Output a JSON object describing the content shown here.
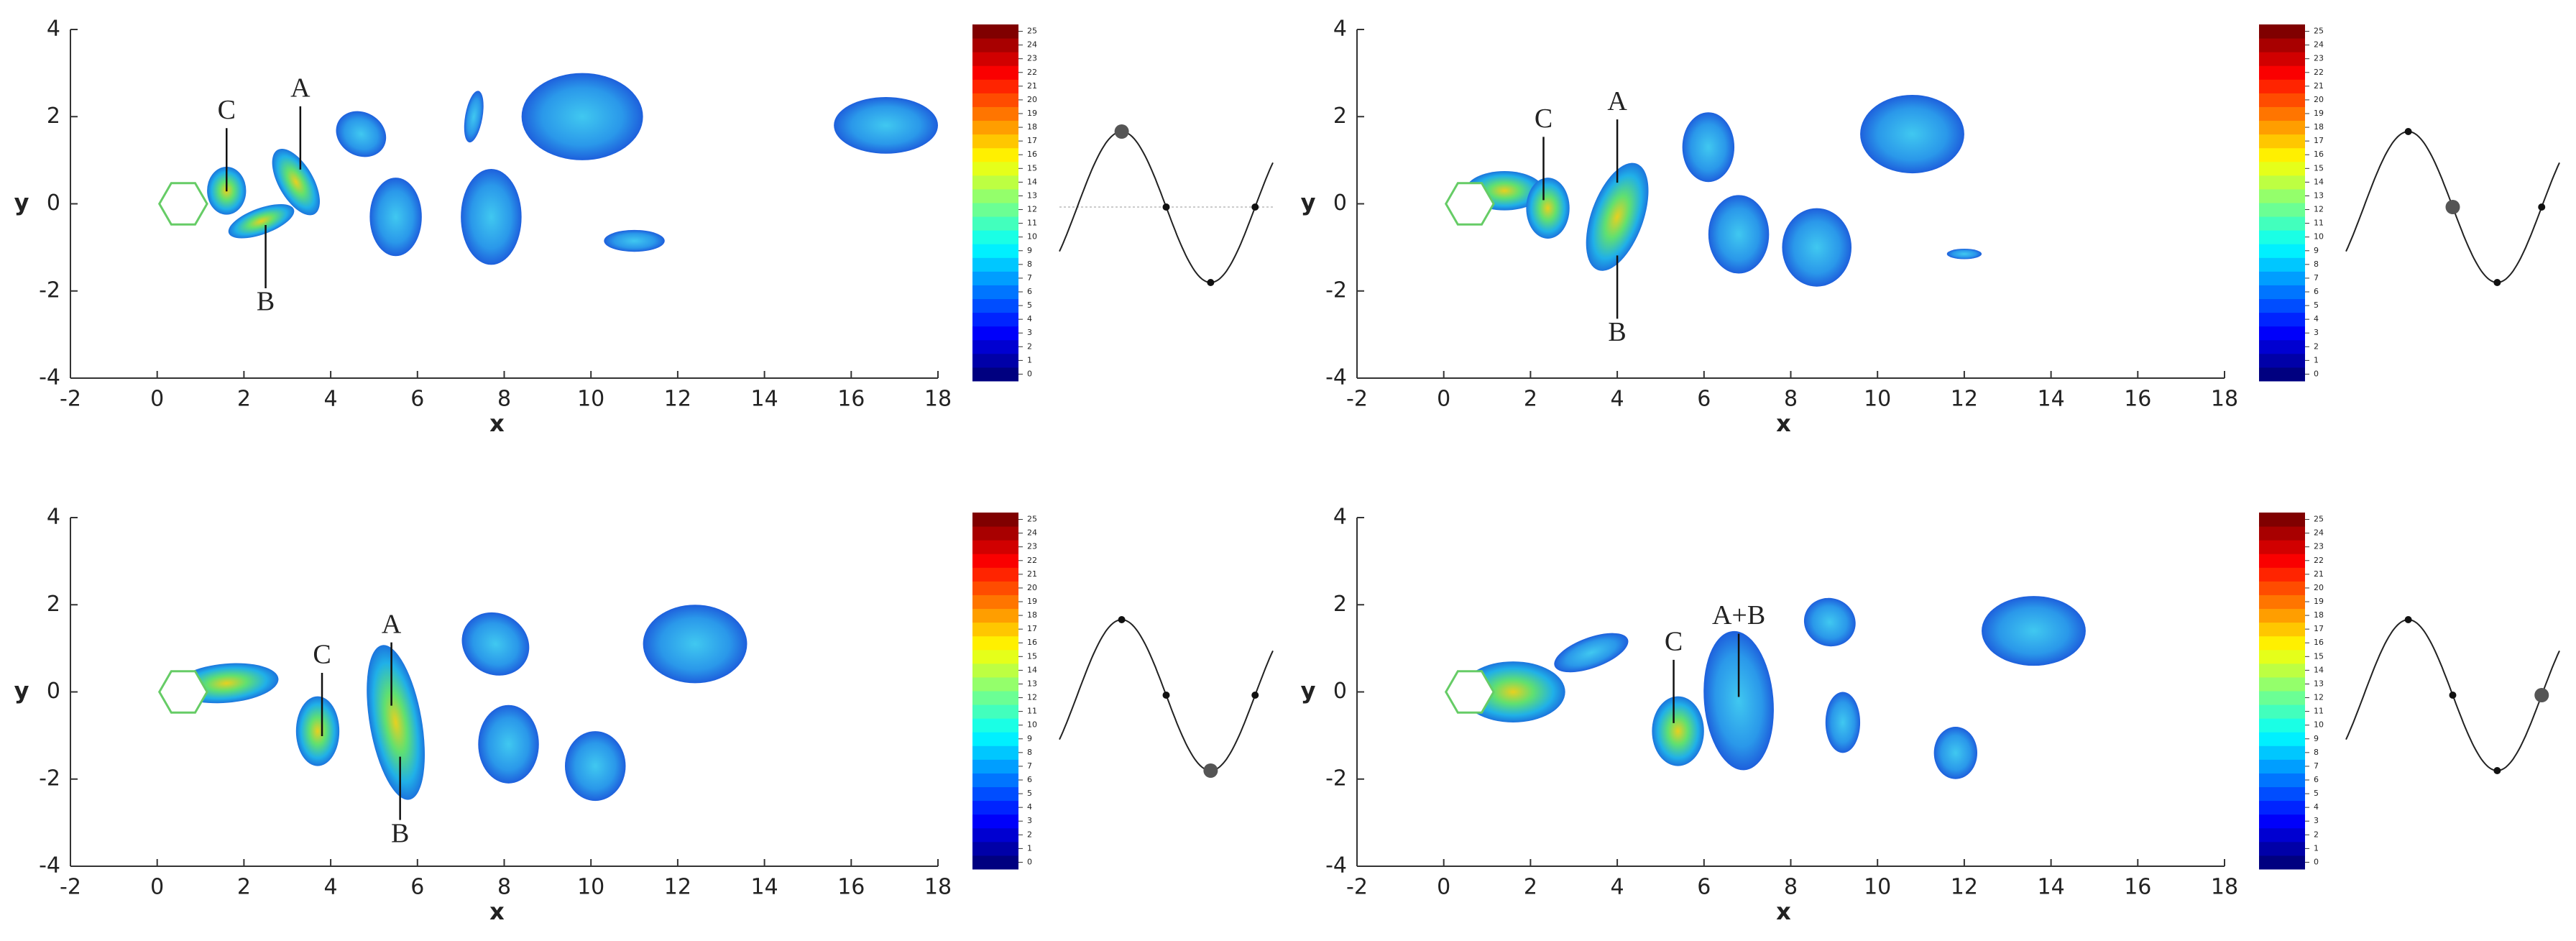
{
  "chart_data": [
    {
      "type": "contour",
      "xlabel": "x",
      "ylabel": "y",
      "xlim": [
        -2,
        18
      ],
      "ylim": [
        -4,
        4
      ],
      "xticks": [
        -2,
        0,
        2,
        4,
        6,
        8,
        10,
        12,
        14,
        16,
        18
      ],
      "yticks": [
        -4,
        -2,
        0,
        2,
        4
      ],
      "colormap": "jet",
      "clim": [
        0,
        25
      ],
      "cticks": [
        0,
        1,
        2,
        3,
        4,
        5,
        6,
        7,
        8,
        9,
        10,
        11,
        12,
        13,
        14,
        15,
        16,
        17,
        18,
        19,
        20,
        21,
        22,
        23,
        24,
        25
      ],
      "annotations": [
        {
          "text": "C",
          "x": 1.6,
          "y": 2.1
        },
        {
          "text": "A",
          "x": 3.3,
          "y": 2.6
        },
        {
          "text": "B",
          "x": 2.5,
          "y": -2.3
        }
      ]
    },
    {
      "type": "contour",
      "xlabel": "x",
      "ylabel": "y",
      "xlim": [
        -2,
        18
      ],
      "ylim": [
        -4,
        4
      ],
      "xticks": [
        -2,
        0,
        2,
        4,
        6,
        8,
        10,
        12,
        14,
        16,
        18
      ],
      "yticks": [
        -4,
        -2,
        0,
        2,
        4
      ],
      "colormap": "jet",
      "clim": [
        0,
        25
      ],
      "cticks": [
        0,
        1,
        2,
        3,
        4,
        5,
        6,
        7,
        8,
        9,
        10,
        11,
        12,
        13,
        14,
        15,
        16,
        17,
        18,
        19,
        20,
        21,
        22,
        23,
        24,
        25
      ],
      "annotations": [
        {
          "text": "C",
          "x": 2.3,
          "y": 1.9
        },
        {
          "text": "A",
          "x": 4.0,
          "y": 2.3
        },
        {
          "text": "B",
          "x": 4.0,
          "y": -3.0
        }
      ]
    },
    {
      "type": "contour",
      "xlabel": "x",
      "ylabel": "y",
      "xlim": [
        -2,
        18
      ],
      "ylim": [
        -4,
        4
      ],
      "xticks": [
        -2,
        0,
        2,
        4,
        6,
        8,
        10,
        12,
        14,
        16,
        18
      ],
      "yticks": [
        -4,
        -2,
        0,
        2,
        4
      ],
      "colormap": "jet",
      "clim": [
        0,
        25
      ],
      "cticks": [
        0,
        1,
        2,
        3,
        4,
        5,
        6,
        7,
        8,
        9,
        10,
        11,
        12,
        13,
        14,
        15,
        16,
        17,
        18,
        19,
        20,
        21,
        22,
        23,
        24,
        25
      ],
      "annotations": [
        {
          "text": "C",
          "x": 3.8,
          "y": 0.8
        },
        {
          "text": "A",
          "x": 5.4,
          "y": 1.5
        },
        {
          "text": "B",
          "x": 5.6,
          "y": -3.3
        }
      ]
    },
    {
      "type": "contour",
      "xlabel": "x",
      "ylabel": "y",
      "xlim": [
        -2,
        18
      ],
      "ylim": [
        -4,
        4
      ],
      "xticks": [
        -2,
        0,
        2,
        4,
        6,
        8,
        10,
        12,
        14,
        16,
        18
      ],
      "yticks": [
        -4,
        -2,
        0,
        2,
        4
      ],
      "colormap": "jet",
      "clim": [
        0,
        25
      ],
      "cticks": [
        0,
        1,
        2,
        3,
        4,
        5,
        6,
        7,
        8,
        9,
        10,
        11,
        12,
        13,
        14,
        15,
        16,
        17,
        18,
        19,
        20,
        21,
        22,
        23,
        24,
        25
      ],
      "annotations": [
        {
          "text": "C",
          "x": 5.3,
          "y": 1.1
        },
        {
          "text": "A+B",
          "x": 6.8,
          "y": 1.7
        }
      ]
    }
  ]
}
